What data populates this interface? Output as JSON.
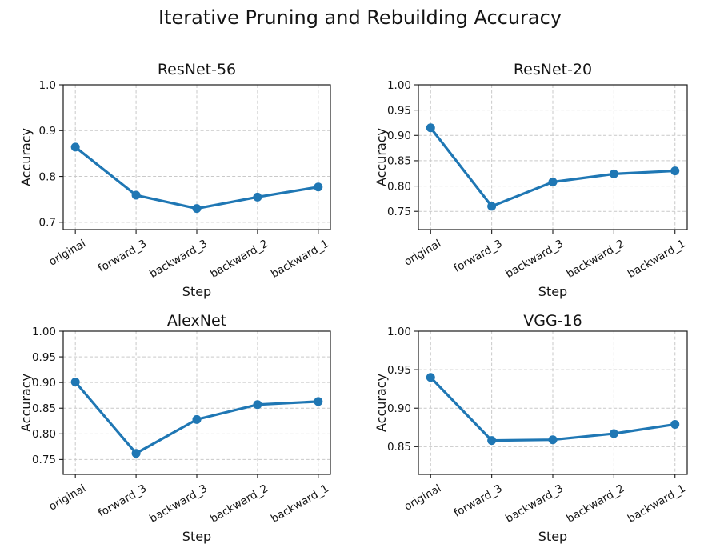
{
  "figure": {
    "title": "Iterative Pruning and Rebuilding Accuracy",
    "background": "#ffffff",
    "line_color": "#1f77b4",
    "marker_color": "#1f77b4",
    "grid_color": "#c9c9c9",
    "axis_color": "#1a1a1a",
    "text_color": "#141414"
  },
  "chart_data": [
    {
      "type": "line",
      "title": "ResNet-56",
      "xlabel": "Step",
      "ylabel": "Accuracy",
      "categories": [
        "original",
        "forward_3",
        "backward_3",
        "backward_2",
        "backward_1"
      ],
      "values": [
        0.864,
        0.759,
        0.73,
        0.755,
        0.777
      ],
      "ylim": [
        0.684,
        1.0
      ],
      "yticks": [
        0.7,
        0.8,
        0.9,
        1.0
      ],
      "ytick_labels": [
        "0.7",
        "0.8",
        "0.9",
        "1.0"
      ],
      "grid": true,
      "legend": false
    },
    {
      "type": "line",
      "title": "ResNet-20",
      "xlabel": "Step",
      "ylabel": "Accuracy",
      "categories": [
        "original",
        "forward_3",
        "backward_3",
        "backward_2",
        "backward_1"
      ],
      "values": [
        0.915,
        0.76,
        0.808,
        0.824,
        0.83
      ],
      "ylim": [
        0.714,
        1.0
      ],
      "yticks": [
        0.75,
        0.8,
        0.85,
        0.9,
        0.95,
        1.0
      ],
      "ytick_labels": [
        "0.75",
        "0.80",
        "0.85",
        "0.90",
        "0.95",
        "1.00"
      ],
      "grid": true,
      "legend": false
    },
    {
      "type": "line",
      "title": "AlexNet",
      "xlabel": "Step",
      "ylabel": "Accuracy",
      "categories": [
        "original",
        "forward_3",
        "backward_3",
        "backward_2",
        "backward_1"
      ],
      "values": [
        0.901,
        0.762,
        0.828,
        0.857,
        0.863
      ],
      "ylim": [
        0.721,
        1.0
      ],
      "yticks": [
        0.75,
        0.8,
        0.85,
        0.9,
        0.95,
        1.0
      ],
      "ytick_labels": [
        "0.75",
        "0.80",
        "0.85",
        "0.90",
        "0.95",
        "1.00"
      ],
      "grid": true,
      "legend": false
    },
    {
      "type": "line",
      "title": "VGG-16",
      "xlabel": "Step",
      "ylabel": "Accuracy",
      "categories": [
        "original",
        "forward_3",
        "backward_3",
        "backward_2",
        "backward_1"
      ],
      "values": [
        0.94,
        0.858,
        0.859,
        0.867,
        0.879
      ],
      "ylim": [
        0.814,
        1.0
      ],
      "yticks": [
        0.85,
        0.9,
        0.95,
        1.0
      ],
      "ytick_labels": [
        "0.85",
        "0.90",
        "0.95",
        "1.00"
      ],
      "grid": true,
      "legend": false
    }
  ]
}
